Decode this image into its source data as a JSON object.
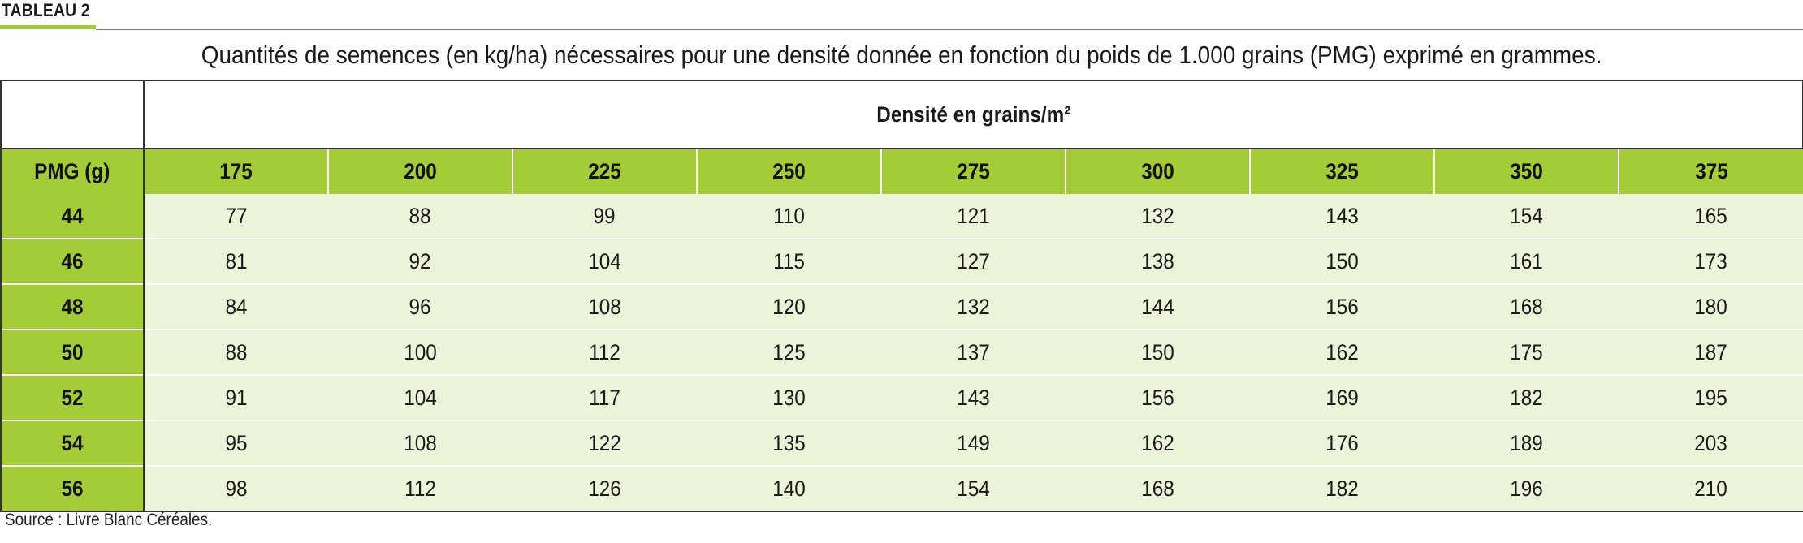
{
  "label": "TABLEAU 2",
  "caption": "Quantités de semences (en kg/ha) nécessaires pour une densité donnée en fonction du poids de 1.000 grains (PMG) exprimé en grammes.",
  "table": {
    "group_header": "Densité en grains/m²",
    "row_header_label": "PMG (g)",
    "densities": [
      "175",
      "200",
      "225",
      "250",
      "275",
      "300",
      "325",
      "350",
      "375"
    ],
    "rows": [
      {
        "pmg": "44",
        "values": [
          "77",
          "88",
          "99",
          "110",
          "121",
          "132",
          "143",
          "154",
          "165"
        ]
      },
      {
        "pmg": "46",
        "values": [
          "81",
          "92",
          "104",
          "115",
          "127",
          "138",
          "150",
          "161",
          "173"
        ]
      },
      {
        "pmg": "48",
        "values": [
          "84",
          "96",
          "108",
          "120",
          "132",
          "144",
          "156",
          "168",
          "180"
        ]
      },
      {
        "pmg": "50",
        "values": [
          "88",
          "100",
          "112",
          "125",
          "137",
          "150",
          "162",
          "175",
          "187"
        ]
      },
      {
        "pmg": "52",
        "values": [
          "91",
          "104",
          "117",
          "130",
          "143",
          "156",
          "169",
          "182",
          "195"
        ]
      },
      {
        "pmg": "54",
        "values": [
          "95",
          "108",
          "122",
          "135",
          "149",
          "162",
          "176",
          "189",
          "203"
        ]
      },
      {
        "pmg": "56",
        "values": [
          "98",
          "112",
          "126",
          "140",
          "154",
          "168",
          "182",
          "196",
          "210"
        ]
      }
    ]
  },
  "source": "Source : Livre Blanc Céréales.",
  "colors": {
    "accent_green": "#a4cc36",
    "cell_bg": "#ebf3d9"
  }
}
